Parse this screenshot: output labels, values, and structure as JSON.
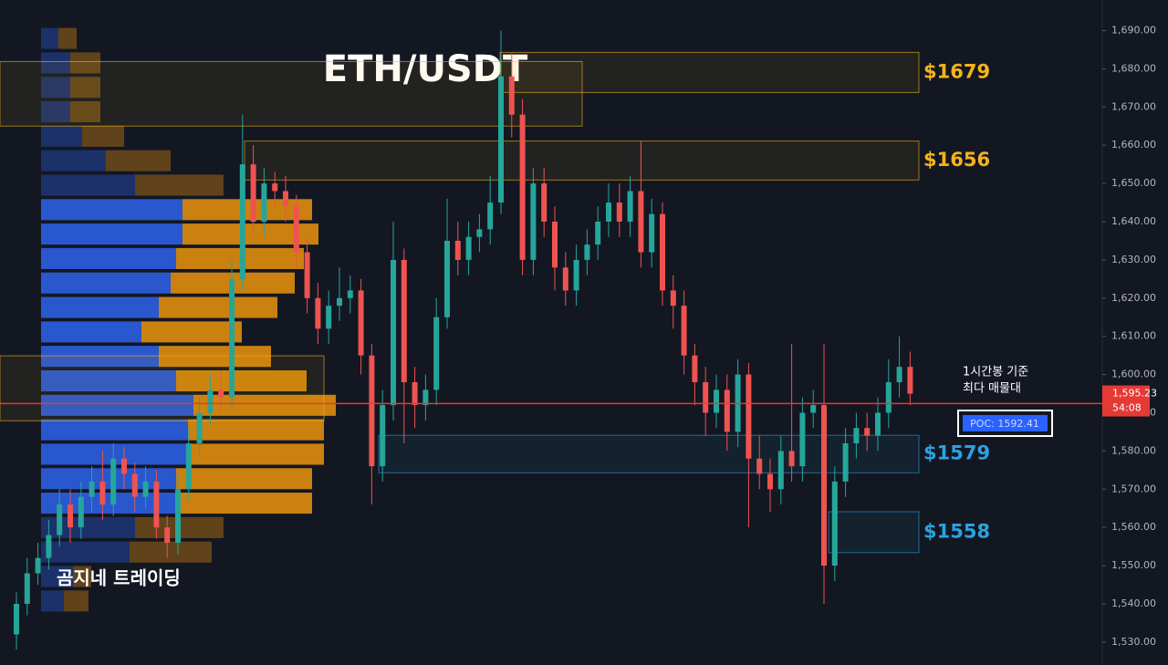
{
  "chart_data": {
    "type": "candlestick",
    "title": "ETH/USDT",
    "watermark": "곰지네 트레이딩",
    "annotation": [
      "1시간봉 기준",
      "최다 매물대"
    ],
    "up_color": "#26a69a",
    "down_color": "#ef5350",
    "ylim": [
      1524,
      1698
    ],
    "yticks": [
      {
        "value": 1530,
        "label": "1,530.00"
      },
      {
        "value": 1540,
        "label": "1,540.00"
      },
      {
        "value": 1550,
        "label": "1,550.00"
      },
      {
        "value": 1560,
        "label": "1,560.00"
      },
      {
        "value": 1570,
        "label": "1,570.00"
      },
      {
        "value": 1580,
        "label": "1,580.00"
      },
      {
        "value": 1590,
        "label": "1,590.00"
      },
      {
        "value": 1600,
        "label": "1,600.00"
      },
      {
        "value": 1610,
        "label": "1,610.00"
      },
      {
        "value": 1620,
        "label": "1,620.00"
      },
      {
        "value": 1630,
        "label": "1,630.00"
      },
      {
        "value": 1640,
        "label": "1,640.00"
      },
      {
        "value": 1650,
        "label": "1,650.00"
      },
      {
        "value": 1660,
        "label": "1,660.00"
      },
      {
        "value": 1670,
        "label": "1,670.00"
      },
      {
        "value": 1680,
        "label": "1,680.00"
      },
      {
        "value": 1690,
        "label": "1,690.00"
      }
    ],
    "candles": {
      "open": [
        1532,
        1540,
        1548,
        1552,
        1558,
        1566,
        1560,
        1568,
        1572,
        1566,
        1578,
        1574,
        1568,
        1572,
        1560,
        1556,
        1570,
        1582,
        1590,
        1596,
        1594,
        1625,
        1655,
        1640,
        1650,
        1648,
        1644,
        1632,
        1620,
        1612,
        1618,
        1620,
        1622,
        1605,
        1576,
        1592,
        1630,
        1598,
        1592,
        1596,
        1615,
        1635,
        1630,
        1636,
        1638,
        1645,
        1678,
        1668,
        1630,
        1650,
        1640,
        1628,
        1622,
        1630,
        1634,
        1640,
        1645,
        1640,
        1648,
        1632,
        1642,
        1622,
        1618,
        1605,
        1598,
        1590,
        1596,
        1585,
        1600,
        1578,
        1574,
        1570,
        1580,
        1576,
        1590,
        1592,
        1550,
        1572,
        1582,
        1586,
        1584,
        1590,
        1598,
        1602
      ],
      "high": [
        1543,
        1552,
        1556,
        1562,
        1570,
        1570,
        1572,
        1576,
        1580,
        1582,
        1581,
        1577,
        1576,
        1575,
        1563,
        1574,
        1586,
        1594,
        1600,
        1601,
        1630,
        1668,
        1660,
        1654,
        1653,
        1652,
        1647,
        1636,
        1624,
        1622,
        1628,
        1626,
        1625,
        1608,
        1596,
        1640,
        1633,
        1602,
        1600,
        1620,
        1646,
        1640,
        1640,
        1642,
        1652,
        1690,
        1684,
        1672,
        1654,
        1654,
        1644,
        1632,
        1634,
        1638,
        1644,
        1650,
        1650,
        1652,
        1661,
        1646,
        1645,
        1626,
        1622,
        1608,
        1602,
        1600,
        1600,
        1604,
        1603,
        1584,
        1578,
        1584,
        1608,
        1594,
        1596,
        1608,
        1576,
        1586,
        1590,
        1590,
        1594,
        1604,
        1610,
        1606
      ],
      "low": [
        1528,
        1537,
        1545,
        1549,
        1555,
        1556,
        1557,
        1564,
        1562,
        1563,
        1570,
        1564,
        1565,
        1557,
        1552,
        1553,
        1567,
        1579,
        1587,
        1590,
        1591,
        1622,
        1636,
        1636,
        1644,
        1640,
        1628,
        1616,
        1608,
        1608,
        1614,
        1616,
        1600,
        1566,
        1572,
        1588,
        1582,
        1586,
        1588,
        1592,
        1612,
        1626,
        1626,
        1632,
        1634,
        1642,
        1662,
        1626,
        1626,
        1636,
        1622,
        1618,
        1618,
        1626,
        1630,
        1636,
        1636,
        1636,
        1628,
        1628,
        1618,
        1612,
        1600,
        1592,
        1584,
        1586,
        1580,
        1581,
        1560,
        1570,
        1564,
        1566,
        1572,
        1572,
        1586,
        1540,
        1546,
        1568,
        1578,
        1580,
        1580,
        1586,
        1594,
        1592
      ],
      "close": [
        1540,
        1548,
        1552,
        1558,
        1566,
        1560,
        1568,
        1572,
        1566,
        1578,
        1574,
        1568,
        1572,
        1560,
        1556,
        1570,
        1582,
        1590,
        1596,
        1594,
        1625,
        1655,
        1640,
        1650,
        1648,
        1644,
        1632,
        1620,
        1612,
        1618,
        1620,
        1622,
        1605,
        1576,
        1592,
        1630,
        1598,
        1592,
        1596,
        1615,
        1635,
        1630,
        1636,
        1638,
        1645,
        1678,
        1668,
        1630,
        1650,
        1640,
        1628,
        1622,
        1630,
        1634,
        1640,
        1645,
        1640,
        1648,
        1632,
        1642,
        1622,
        1618,
        1605,
        1598,
        1590,
        1596,
        1585,
        1600,
        1578,
        1574,
        1570,
        1580,
        1576,
        1590,
        1592,
        1550,
        1572,
        1582,
        1586,
        1584,
        1590,
        1598,
        1602,
        1595
      ]
    },
    "volume_profile": {
      "buy_color": "#2a5bd7",
      "sell_color": "#d4870f",
      "value_area": [
        1563.6,
        1645.9
      ],
      "lows": [
        1685.2,
        1678.8,
        1672.4,
        1666.0,
        1659.6,
        1653.2,
        1646.8,
        1640.4,
        1634.0,
        1627.6,
        1621.2,
        1614.8,
        1608.4,
        1602.0,
        1595.6,
        1589.2,
        1582.8,
        1576.4,
        1570.0,
        1563.6,
        1557.2,
        1550.8,
        1544.4,
        1538.0
      ],
      "highs": [
        1690.7,
        1684.3,
        1677.9,
        1671.5,
        1665.1,
        1658.7,
        1652.3,
        1645.9,
        1639.5,
        1633.1,
        1626.7,
        1620.3,
        1613.9,
        1607.5,
        1601.1,
        1594.7,
        1588.3,
        1581.9,
        1575.5,
        1569.1,
        1562.7,
        1556.3,
        1549.9,
        1543.5
      ],
      "buy": [
        19,
        32,
        32,
        32,
        45,
        71,
        103,
        155,
        155,
        148,
        142,
        129,
        110,
        129,
        148,
        167,
        161,
        161,
        148,
        148,
        103,
        97,
        35,
        25
      ],
      "sell": [
        20,
        33,
        33,
        33,
        46,
        71,
        97,
        142,
        149,
        140,
        136,
        130,
        110,
        123,
        143,
        156,
        149,
        149,
        149,
        149,
        97,
        90,
        20,
        27
      ]
    },
    "zones": [
      {
        "high": 1684.3,
        "low": 1673.8,
        "label": "$1679",
        "color": "#f5b31a"
      },
      {
        "high": 1661.1,
        "low": 1650.9,
        "label": "$1656",
        "color": "#f5b31a"
      },
      {
        "high": 1584.1,
        "low": 1574.3,
        "label": "$1579",
        "color": "#29a3e0"
      },
      {
        "high": 1564.1,
        "low": 1553.4,
        "label": "$1558",
        "color": "#29a3e0"
      },
      {
        "high": 1681.9,
        "low": 1665.0,
        "color": "#f5b31a"
      },
      {
        "high": 1604.9,
        "low": 1587.9,
        "color": "#f5b31a"
      }
    ],
    "poc": 1592.41,
    "poc_label": "POC: 1592.41",
    "last_price": {
      "value": 1595.23,
      "label": "1,595.23"
    },
    "countdown": "54:08"
  }
}
